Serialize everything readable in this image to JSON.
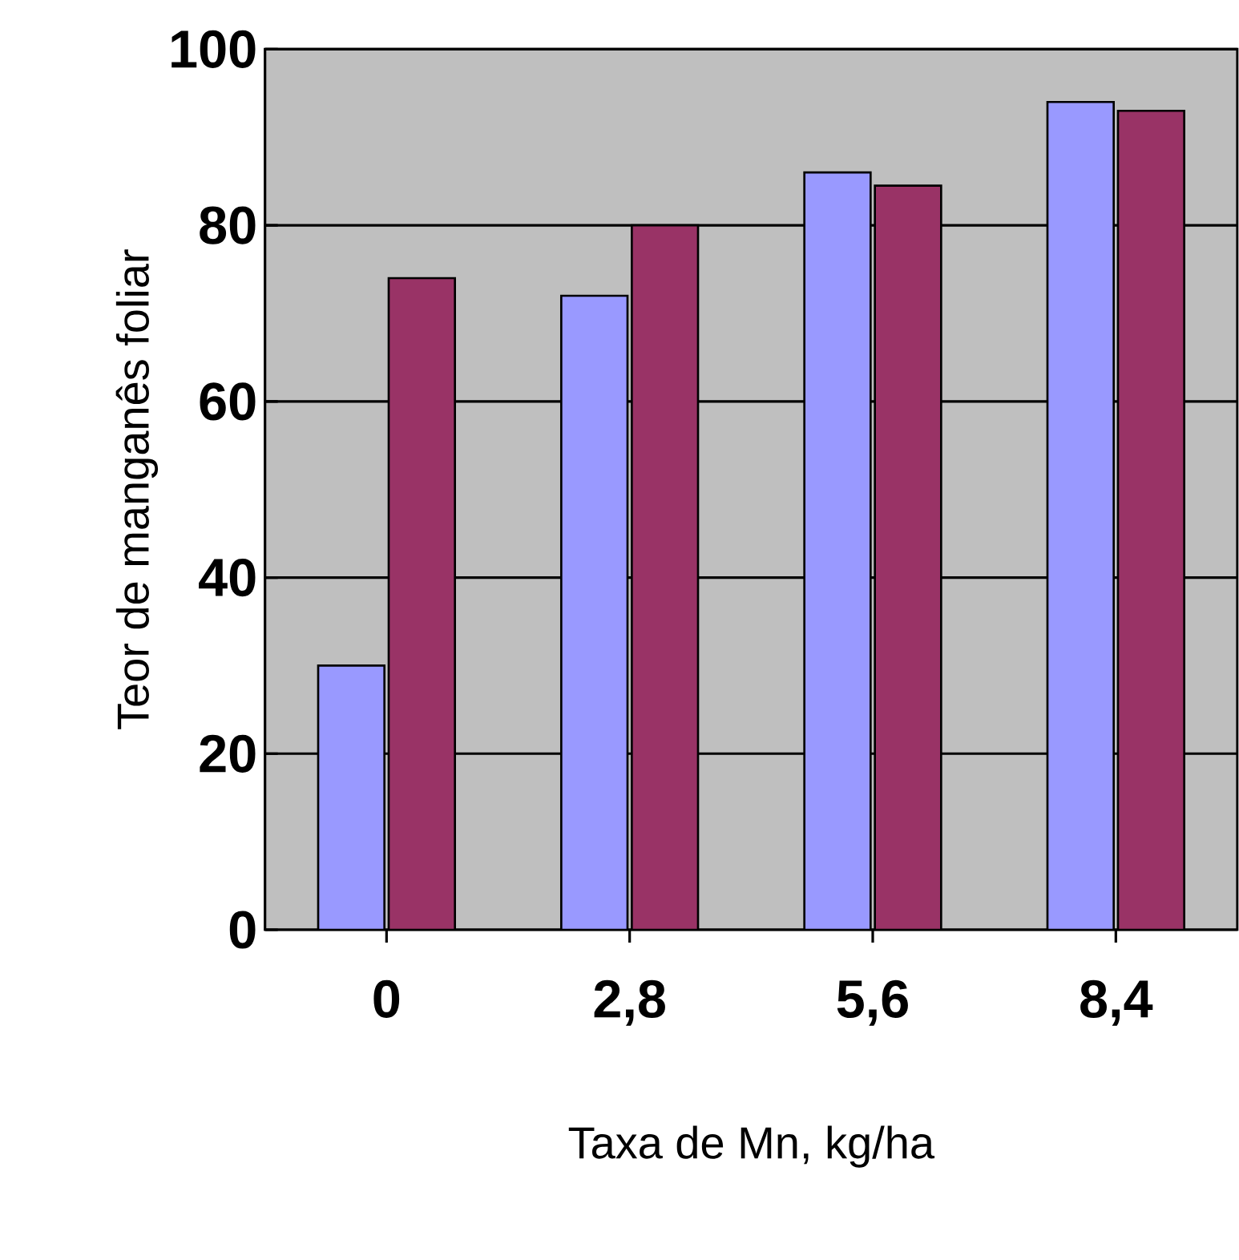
{
  "chart_data": {
    "type": "bar",
    "xlabel": "Taxa de Mn, kg/ha",
    "ylabel": "Teor de manganês foliar",
    "categories": [
      "0",
      "2,8",
      "5,6",
      "8,4"
    ],
    "series": [
      {
        "color": "#9999ff",
        "values": [
          30,
          72,
          86,
          94
        ]
      },
      {
        "color": "#993366",
        "values": [
          74,
          80,
          84.5,
          93
        ]
      }
    ],
    "ylim": [
      0,
      100
    ],
    "yticks": [
      0,
      20,
      40,
      60,
      80,
      100
    ],
    "grid": "y"
  }
}
